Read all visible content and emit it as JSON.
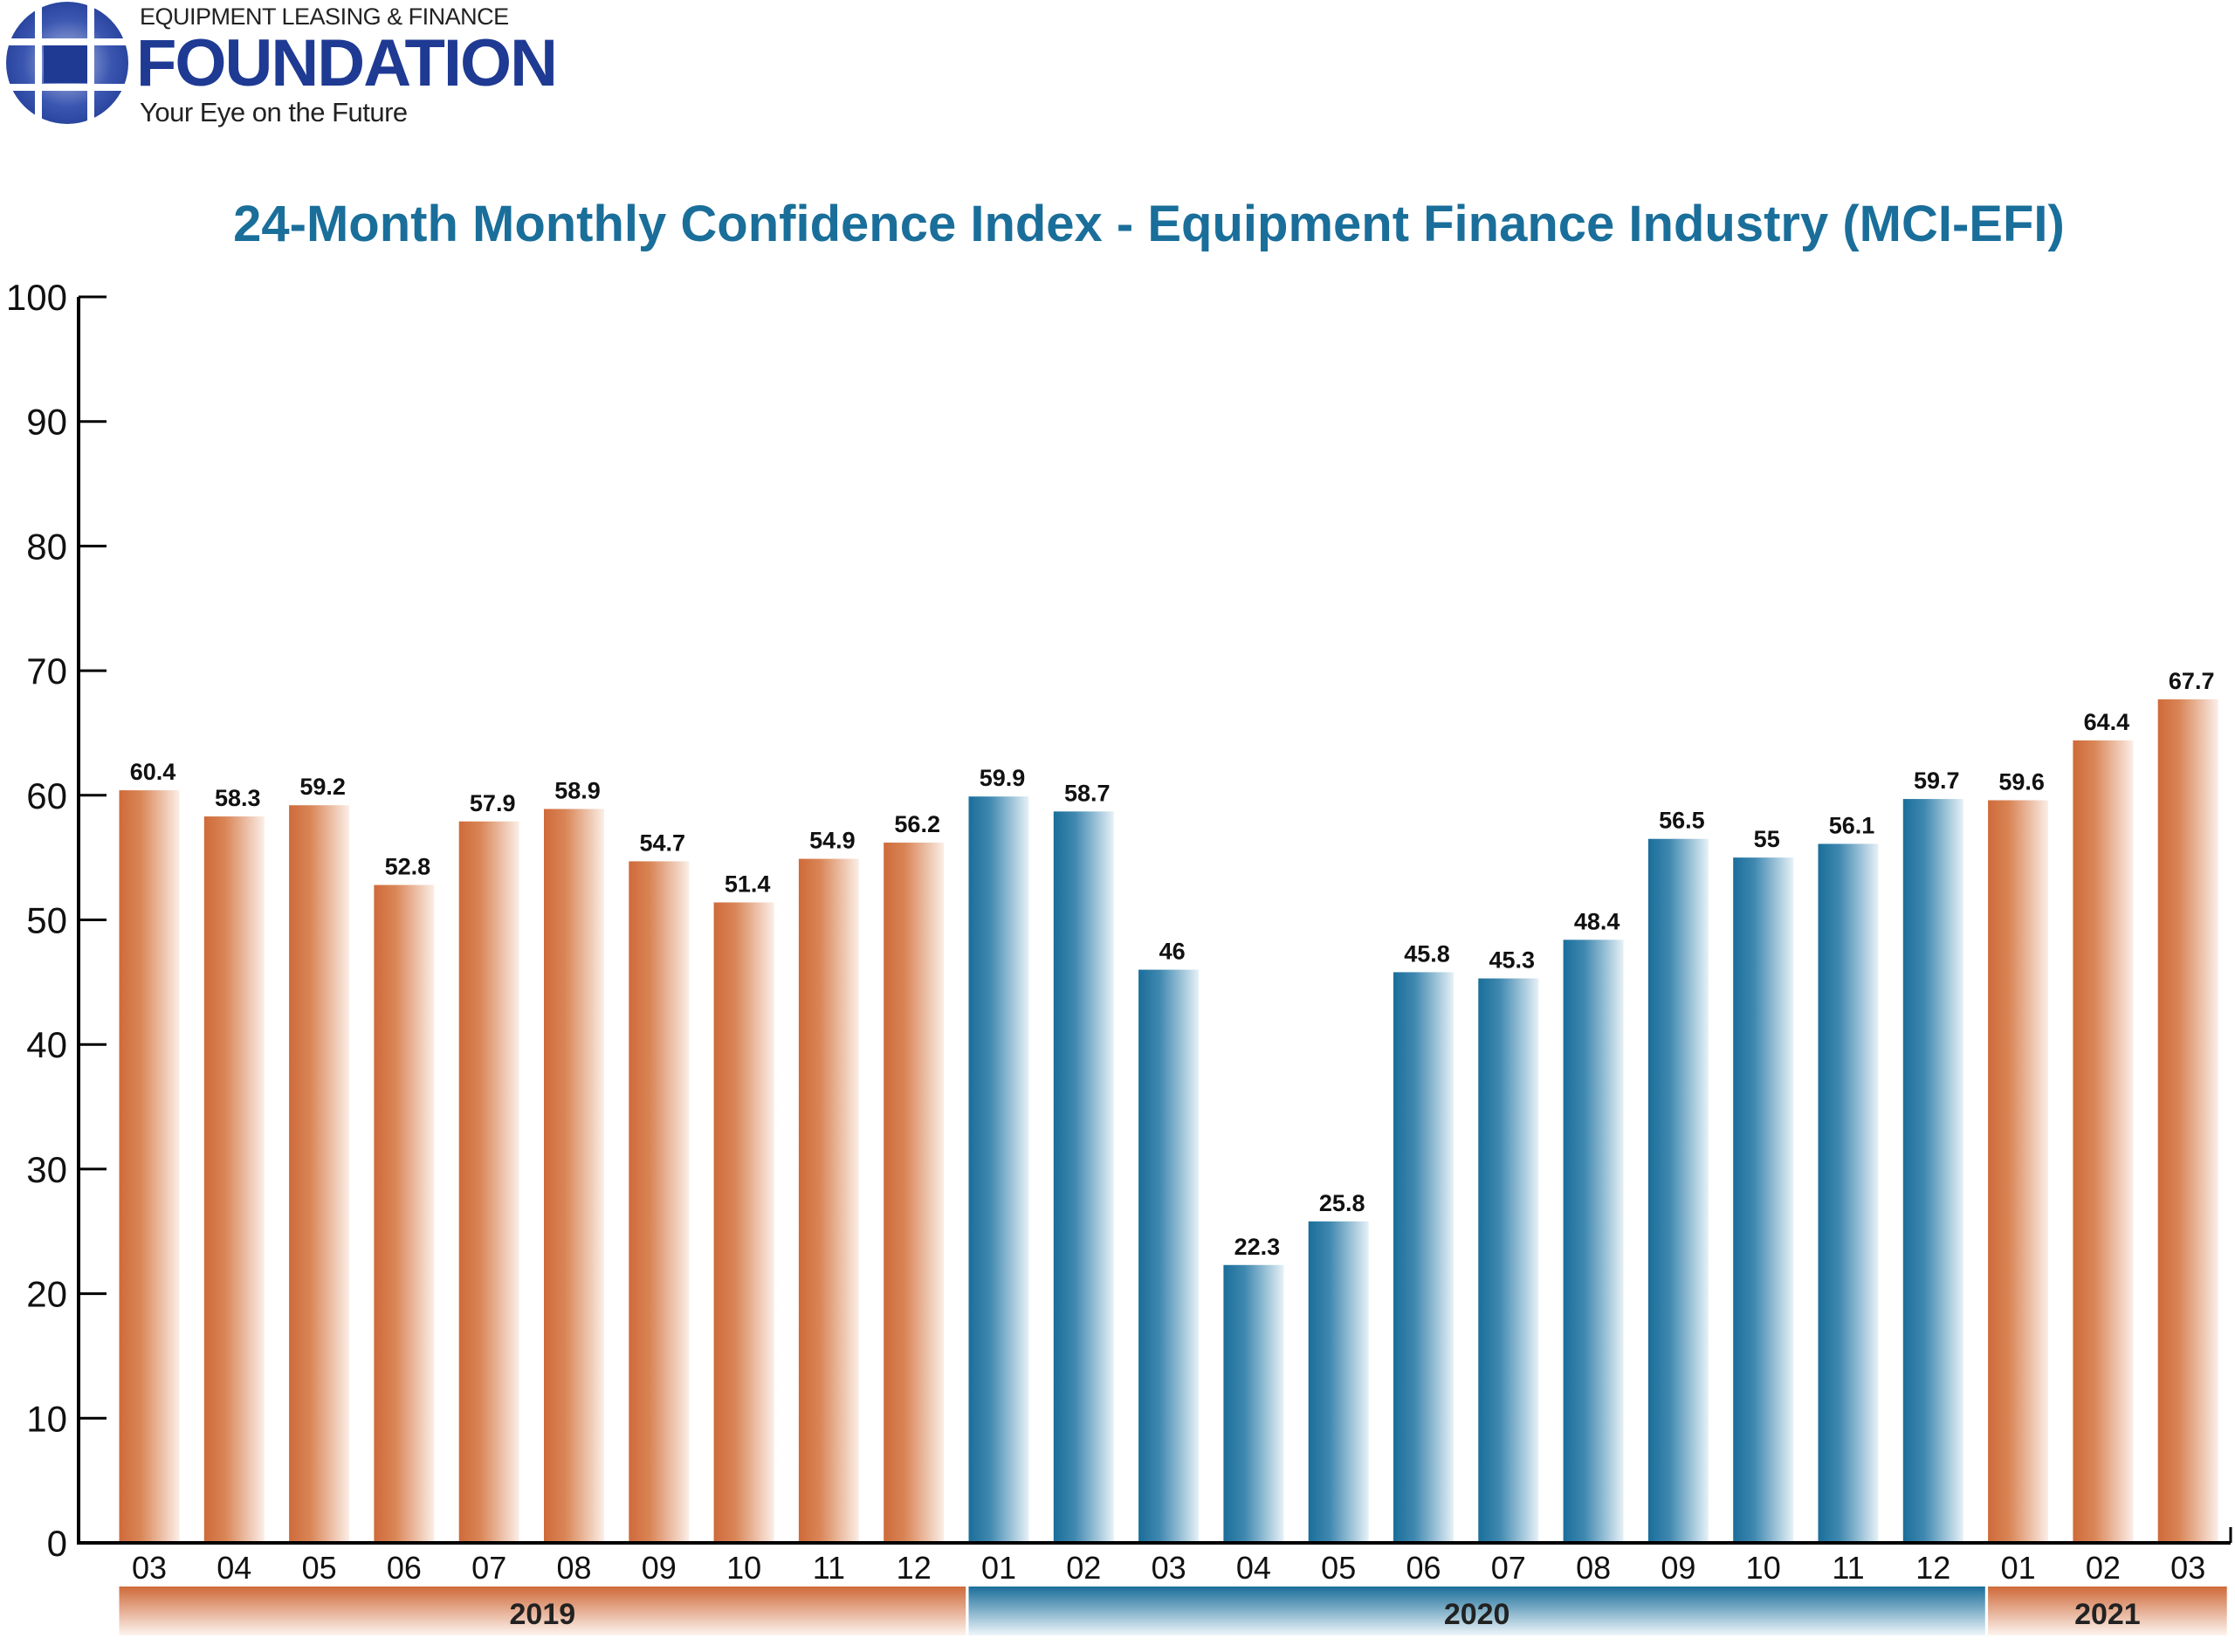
{
  "logo": {
    "line1": "EQUIPMENT LEASING & FINANCE",
    "line2": "FOUNDATION",
    "tagline": "Your Eye on the Future",
    "color": "#1e3a93"
  },
  "chart_data": {
    "type": "bar",
    "title": "24-Month Monthly Confidence Index - Equipment Finance Industry (MCI-EFI)",
    "xlabel": "",
    "ylabel": "",
    "ylim": [
      0,
      100
    ],
    "yticks": [
      0,
      10,
      20,
      30,
      40,
      50,
      60,
      70,
      80,
      90,
      100
    ],
    "grid": false,
    "categories": [
      "03",
      "04",
      "05",
      "06",
      "07",
      "08",
      "09",
      "10",
      "11",
      "12",
      "01",
      "02",
      "03",
      "04",
      "05",
      "06",
      "07",
      "08",
      "09",
      "10",
      "11",
      "12",
      "01",
      "02",
      "03"
    ],
    "years": [
      "2019",
      "2019",
      "2019",
      "2019",
      "2019",
      "2019",
      "2019",
      "2019",
      "2019",
      "2019",
      "2020",
      "2020",
      "2020",
      "2020",
      "2020",
      "2020",
      "2020",
      "2020",
      "2020",
      "2020",
      "2020",
      "2020",
      "2021",
      "2021",
      "2021"
    ],
    "values": [
      60.4,
      58.3,
      59.2,
      52.8,
      57.9,
      58.9,
      54.7,
      51.4,
      54.9,
      56.2,
      59.9,
      58.7,
      46,
      22.3,
      25.8,
      45.8,
      45.3,
      48.4,
      56.5,
      55,
      56.1,
      59.7,
      59.6,
      64.4,
      67.7
    ],
    "year_groups": [
      {
        "label": "2019",
        "color": "#cf6a3a"
      },
      {
        "label": "2020",
        "color": "#1a6e9a"
      },
      {
        "label": "2021",
        "color": "#cf6a3a"
      }
    ]
  }
}
